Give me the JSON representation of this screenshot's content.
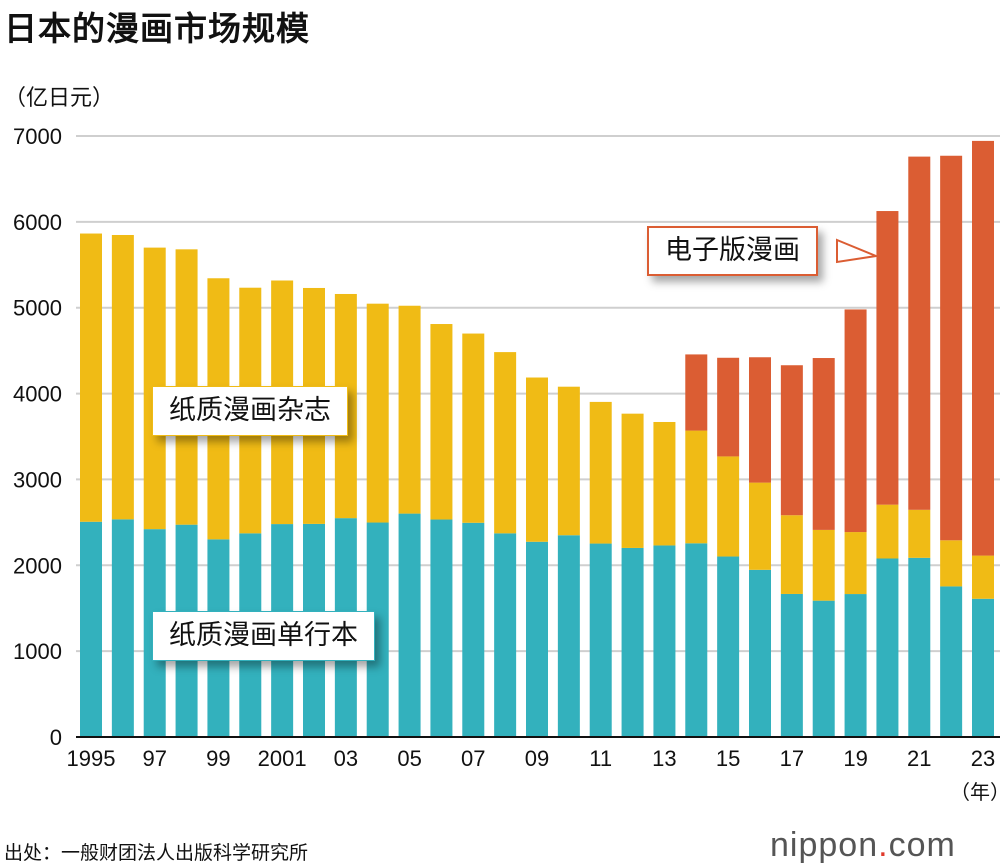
{
  "chart_data": {
    "type": "bar",
    "stacked": true,
    "title": "日本的漫画市场规模",
    "ylabel": "（亿日元）",
    "xlabel": "（年）",
    "ylim": [
      0,
      7000
    ],
    "yticks": [
      0,
      1000,
      2000,
      3000,
      4000,
      5000,
      6000,
      7000
    ],
    "grid": true,
    "categories": [
      "1995",
      "1996",
      "1997",
      "1998",
      "1999",
      "2000",
      "2001",
      "2002",
      "2003",
      "2004",
      "2005",
      "2006",
      "2007",
      "2008",
      "2009",
      "2010",
      "2011",
      "2012",
      "2013",
      "2014",
      "2015",
      "2016",
      "2017",
      "2018",
      "2019",
      "2020",
      "2021",
      "2022",
      "2023"
    ],
    "xtick_labels": {
      "1995": "1995",
      "1997": "97",
      "1999": "99",
      "2001": "2001",
      "2003": "03",
      "2005": "05",
      "2007": "07",
      "2009": "09",
      "2011": "11",
      "2013": "13",
      "2015": "15",
      "2017": "17",
      "2019": "19",
      "2021": "21",
      "2023": "23"
    },
    "series": [
      {
        "name": "纸质漫画单行本",
        "color": "#33b1bd",
        "values": [
          2507,
          2535,
          2421,
          2473,
          2302,
          2372,
          2480,
          2482,
          2549,
          2498,
          2602,
          2533,
          2495,
          2372,
          2274,
          2350,
          2253,
          2202,
          2231,
          2256,
          2102,
          1947,
          1666,
          1588,
          1665,
          2079,
          2087,
          1754,
          1610
        ]
      },
      {
        "name": "纸质漫画杂志",
        "color": "#f0bb15",
        "values": [
          3357,
          3312,
          3279,
          3207,
          3041,
          2861,
          2837,
          2748,
          2611,
          2549,
          2421,
          2277,
          2204,
          2111,
          1913,
          1730,
          1650,
          1564,
          1438,
          1313,
          1166,
          1016,
          917,
          824,
          722,
          627,
          559,
          537,
          503
        ]
      },
      {
        "name": "电子版漫画",
        "color": "#db5d33",
        "values": [
          0,
          0,
          0,
          0,
          0,
          0,
          0,
          0,
          0,
          0,
          0,
          0,
          0,
          0,
          0,
          0,
          0,
          0,
          0,
          887,
          1149,
          1460,
          1747,
          2002,
          2593,
          3420,
          4114,
          4479,
          4830
        ]
      }
    ]
  },
  "source": "出处：一般财团法人出版科学研究所",
  "logo": {
    "text": "nippon",
    "dot": ".",
    "suffix": "com"
  }
}
